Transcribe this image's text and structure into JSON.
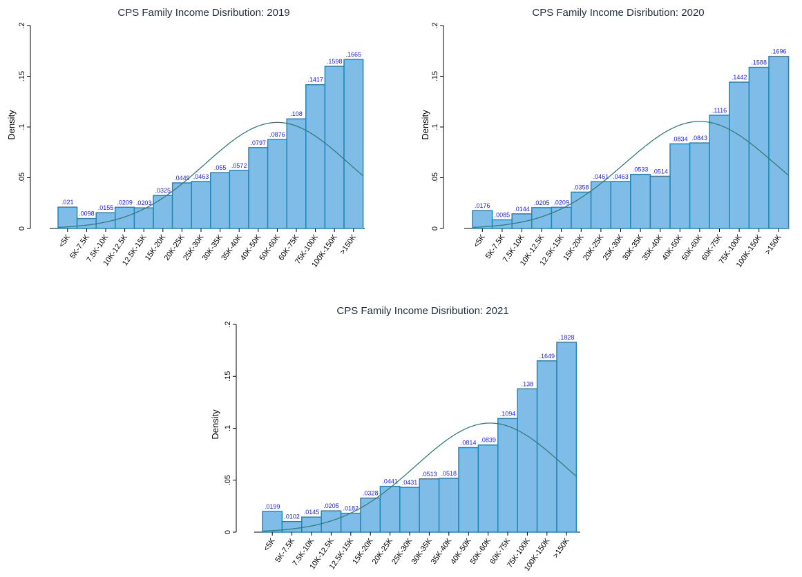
{
  "chart_data": [
    {
      "type": "bar",
      "title": "CPS Family Income Disribution: 2019",
      "ylabel": "Density",
      "ylim": [
        0,
        0.2
      ],
      "yticks": [
        0,
        0.05,
        0.1,
        0.15,
        0.2
      ],
      "ytick_labels": [
        "0",
        ".05",
        ".1",
        ".15",
        ".2"
      ],
      "categories": [
        "<5K",
        "5K-7.5K",
        "7.5K-10K",
        "10K-12.5K",
        "12.5K-15K",
        "15K-20K",
        "20K-25K",
        "25K-30K",
        "30K-35K",
        "35K-40K",
        "40K-50K",
        "50K-60K",
        "60K-75K",
        "75K-100K",
        "100K-150K",
        ">150K"
      ],
      "values": [
        0.021,
        0.0098,
        0.0155,
        0.0209,
        0.0203,
        0.0325,
        0.0449,
        0.0463,
        0.055,
        0.0572,
        0.0797,
        0.0876,
        0.108,
        0.1417,
        0.1598,
        0.1665
      ],
      "value_labels": [
        ".021",
        ".0098",
        ".0155",
        ".0209",
        ".0203",
        ".0325",
        ".0449",
        ".0463",
        ".055",
        ".0572",
        ".0797",
        ".0876",
        ".108",
        ".1417",
        ".1598",
        ".1665"
      ],
      "normal_curve": {
        "mean_category_index": 11.5,
        "sd_categories": 3.8,
        "peak_density": 0.1045
      }
    },
    {
      "type": "bar",
      "title": "CPS Family Income Disribution: 2020",
      "ylabel": "Density",
      "ylim": [
        0,
        0.2
      ],
      "yticks": [
        0,
        0.05,
        0.1,
        0.15,
        0.2
      ],
      "ytick_labels": [
        "0",
        ".05",
        ".1",
        ".15",
        ".2"
      ],
      "categories": [
        "<5K",
        "5K-7.5K",
        "7.5K-10K",
        "10K-12.5K",
        "12.5K-15K",
        "15K-20K",
        "20K-25K",
        "25K-30K",
        "30K-35K",
        "35K-40K",
        "40K-50K",
        "50K-60K",
        "60K-75K",
        "75K-100K",
        "100K-150K",
        ">150K"
      ],
      "values": [
        0.0176,
        0.0085,
        0.0144,
        0.0205,
        0.0209,
        0.0358,
        0.0461,
        0.0463,
        0.0533,
        0.0514,
        0.0834,
        0.0843,
        0.1116,
        0.1442,
        0.1588,
        0.1696
      ],
      "value_labels": [
        ".0176",
        ".0085",
        ".0144",
        ".0205",
        ".0209",
        ".0358",
        ".0461",
        ".0463",
        ".0533",
        ".0514",
        ".0834",
        ".0843",
        ".1116",
        ".1442",
        ".1588",
        ".1696"
      ],
      "normal_curve": {
        "mean_category_index": 11.5,
        "sd_categories": 3.8,
        "peak_density": 0.1055
      }
    },
    {
      "type": "bar",
      "title": "CPS Family Income Disribution: 2021",
      "ylabel": "Density",
      "ylim": [
        0,
        0.2
      ],
      "yticks": [
        0,
        0.05,
        0.1,
        0.15,
        0.2
      ],
      "ytick_labels": [
        "0",
        ".05",
        ".1",
        ".15",
        ".2"
      ],
      "categories": [
        "<5K",
        "5K-7.5K",
        "7.5K-10K",
        "10K-12.5K",
        "12.5K-15K",
        "15K-20K",
        "20K-25K",
        "25K-30K",
        "30K-35K",
        "35K-40K",
        "40K-50K",
        "50K-60K",
        "60K-75K",
        "75K-100K",
        "100K-150K",
        ">150K"
      ],
      "values": [
        0.0199,
        0.0102,
        0.0145,
        0.0205,
        0.0182,
        0.0328,
        0.0441,
        0.0431,
        0.0513,
        0.0518,
        0.0814,
        0.0839,
        0.1094,
        0.138,
        0.1649,
        0.1828
      ],
      "value_labels": [
        ".0199",
        ".0102",
        ".0145",
        ".0205",
        ".0182",
        ".0328",
        ".0441",
        ".0431",
        ".0513",
        ".0518",
        ".0814",
        ".0839",
        ".1094",
        ".138",
        ".1649",
        ".1828"
      ],
      "normal_curve": {
        "mean_category_index": 11.6,
        "sd_categories": 3.8,
        "peak_density": 0.105
      }
    }
  ],
  "colors": {
    "bar_fill": "#7fbde8",
    "bar_stroke": "#1f87b8",
    "value_label": "#1a1aff",
    "normal_curve": "#2e7d78",
    "title": "#1f2d3d"
  }
}
